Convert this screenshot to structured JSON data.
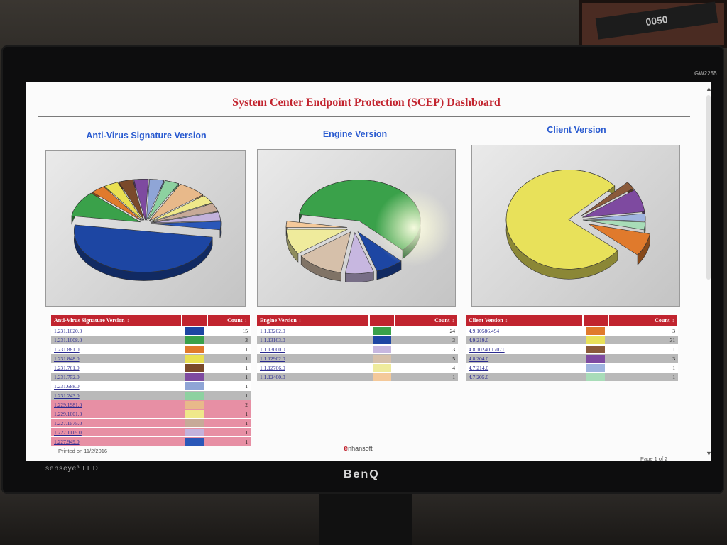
{
  "wall_frame_text": "0050",
  "monitor": {
    "model": "GW2255",
    "tech": "senseye³ LED",
    "brand": "BenQ"
  },
  "dashboard": {
    "title": "System Center Endpoint Protection (SCEP) Dashboard",
    "footer_printed": "Printed on 11/2/2016",
    "footer_page": "Page 1 of 2",
    "logo_text": "nhansoft",
    "logo_mark": "e"
  },
  "chart_data": [
    {
      "type": "pie",
      "title": "Anti-Virus Signature Version",
      "categories": [
        "1.231.1020.0",
        "1.231.1008.0",
        "1.231.881.0",
        "1.231.848.0",
        "1.231.761.0",
        "1.231.752.0",
        "1.231.688.0",
        "1.231.243.0",
        "1.229.1981.0",
        "1.229.1001.0",
        "1.227.1575.0",
        "1.227.1115.0",
        "1.227.949.0"
      ],
      "values": [
        15,
        3,
        1,
        1,
        1,
        1,
        1,
        1,
        2,
        1,
        1,
        1,
        1
      ],
      "colors": [
        "#1d46a3",
        "#3aa14a",
        "#e07a2c",
        "#e9e052",
        "#7a4a2a",
        "#7e4aa0",
        "#8fa5d6",
        "#8dd1a0",
        "#e8b98a",
        "#efe88a",
        "#c7aa98",
        "#c3b2dc",
        "#2a57b8"
      ]
    },
    {
      "type": "pie",
      "title": "Engine Version",
      "categories": [
        "1.1.13202.0",
        "1.1.13103.0",
        "1.1.13000.0",
        "1.1.12902.0",
        "1.1.12706.0",
        "1.1.12400.0"
      ],
      "values": [
        24,
        3,
        3,
        5,
        4,
        1
      ],
      "colors": [
        "#3aa14a",
        "#1d46a3",
        "#c7b7e0",
        "#d6c0aa",
        "#efeb9c",
        "#f4c99a"
      ]
    },
    {
      "type": "pie",
      "title": "Client Version",
      "categories": [
        "4.9.10586.494",
        "4.9.219.0",
        "4.8.10240.17071",
        "4.8.204.0",
        "4.7.214.0",
        "4.7.205.0"
      ],
      "values": [
        3,
        31,
        1,
        3,
        1,
        1
      ],
      "colors": [
        "#e07a2c",
        "#e8e15a",
        "#8a5a3a",
        "#7e4aa0",
        "#9fb4df",
        "#a8dcb8"
      ]
    }
  ],
  "tables": [
    {
      "header": "Anti-Virus Signature Version",
      "count_header": "Count",
      "rows": [
        {
          "version": "1.231.1020.0",
          "count": "15",
          "style": "white"
        },
        {
          "version": "1.231.1008.0",
          "count": "3",
          "style": "grey"
        },
        {
          "version": "1.231.881.0",
          "count": "1",
          "style": "white"
        },
        {
          "version": "1.231.848.0",
          "count": "1",
          "style": "grey"
        },
        {
          "version": "1.231.761.0",
          "count": "1",
          "style": "white"
        },
        {
          "version": "1.231.752.0",
          "count": "1",
          "style": "grey"
        },
        {
          "version": "1.231.688.0",
          "count": "1",
          "style": "white"
        },
        {
          "version": "1.231.243.0",
          "count": "1",
          "style": "grey"
        },
        {
          "version": "1.229.1981.0",
          "count": "2",
          "style": "pink"
        },
        {
          "version": "1.229.1001.0",
          "count": "1",
          "style": "pink"
        },
        {
          "version": "1.227.1575.0",
          "count": "1",
          "style": "pink"
        },
        {
          "version": "1.227.1115.0",
          "count": "1",
          "style": "pink"
        },
        {
          "version": "1.227.949.0",
          "count": "1",
          "style": "pink"
        }
      ]
    },
    {
      "header": "Engine Version",
      "count_header": "Count",
      "rows": [
        {
          "version": "1.1.13202.0",
          "count": "24",
          "style": "white"
        },
        {
          "version": "1.1.13103.0",
          "count": "3",
          "style": "grey"
        },
        {
          "version": "1.1.13000.0",
          "count": "3",
          "style": "white"
        },
        {
          "version": "1.1.12902.0",
          "count": "5",
          "style": "grey"
        },
        {
          "version": "1.1.12706.0",
          "count": "4",
          "style": "white"
        },
        {
          "version": "1.1.12400.0",
          "count": "1",
          "style": "grey"
        }
      ]
    },
    {
      "header": "Client Version",
      "count_header": "Count",
      "rows": [
        {
          "version": "4.9.10586.494",
          "count": "3",
          "style": "white"
        },
        {
          "version": "4.9.219.0",
          "count": "31",
          "style": "grey"
        },
        {
          "version": "4.8.10240.17071",
          "count": "1",
          "style": "white"
        },
        {
          "version": "4.8.204.0",
          "count": "3",
          "style": "grey"
        },
        {
          "version": "4.7.214.0",
          "count": "1",
          "style": "white"
        },
        {
          "version": "4.7.205.0",
          "count": "1",
          "style": "grey"
        }
      ]
    }
  ]
}
